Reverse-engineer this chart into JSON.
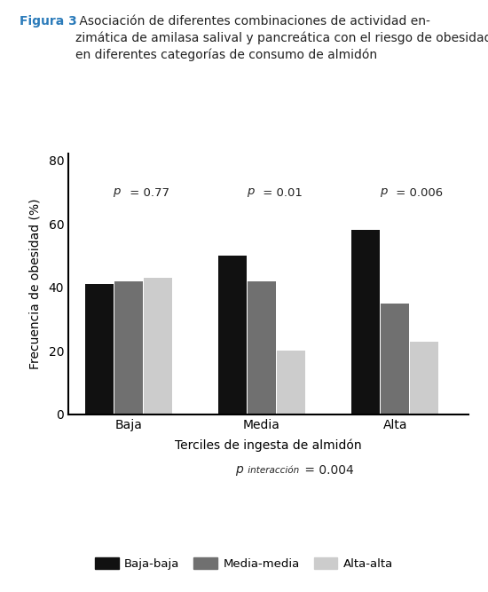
{
  "title_bold": "Figura 3",
  "title_normal": " Asociación de diferentes combinaciones de actividad en-\nzimática de amilasa salival y pancreática con el riesgo de obesidad\nen diferentes categorías de consumo de almidón",
  "categories": [
    "Baja",
    "Media",
    "Alta"
  ],
  "series": {
    "Baja-baja": [
      41,
      50,
      58
    ],
    "Media-media": [
      42,
      42,
      35
    ],
    "Alta-alta": [
      43,
      20,
      23
    ]
  },
  "bar_colors": {
    "Baja-baja": "#111111",
    "Media-media": "#707070",
    "Alta-alta": "#cccccc"
  },
  "p_values": [
    "p = 0.77",
    "p = 0.01",
    "p = 0.006"
  ],
  "xlabel": "Terciles de ingesta de almidón",
  "ylabel": "Frecuencia de obesidad (%)",
  "ylim": [
    0,
    82
  ],
  "yticks": [
    0,
    20,
    40,
    60,
    80
  ],
  "title_color": "#2b7bba",
  "text_color": "#222222",
  "background_color": "#ffffff",
  "bar_width": 0.22,
  "group_positions": [
    1.0,
    2.0,
    3.0
  ],
  "title_fontsize": 10,
  "axis_fontsize": 10,
  "tick_fontsize": 10,
  "p_fontsize": 9.5
}
